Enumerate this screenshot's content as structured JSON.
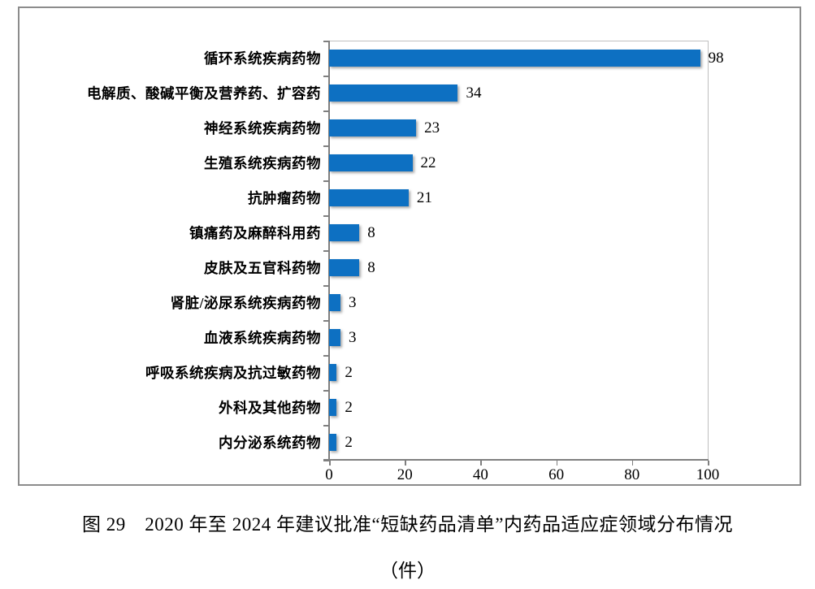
{
  "figure": {
    "caption_line1": "图 29　2020 年至 2024 年建议批准“短缺药品清单”内药品适应症领域分布情况",
    "caption_line2": "（件）"
  },
  "chart_data": {
    "type": "bar",
    "orientation": "horizontal",
    "title": "",
    "xlabel": "",
    "ylabel": "",
    "categories": [
      "循环系统疾病药物",
      "电解质、酸碱平衡及营养药、扩容药",
      "神经系统疾病药物",
      "生殖系统疾病药物",
      "抗肿瘤药物",
      "镇痛药及麻醉科用药",
      "皮肤及五官科药物",
      "肾脏/泌尿系统疾病药物",
      "血液系统疾病药物",
      "呼吸系统疾病及抗过敏药物",
      "外科及其他药物",
      "内分泌系统药物"
    ],
    "values": [
      98,
      34,
      23,
      22,
      21,
      8,
      8,
      3,
      3,
      2,
      2,
      2
    ],
    "xlim": [
      0,
      100
    ],
    "x_ticks": [
      0,
      20,
      40,
      60,
      80,
      100
    ],
    "bar_color": "#0d70c2",
    "data_labels": true,
    "grid": false,
    "legend": false
  }
}
